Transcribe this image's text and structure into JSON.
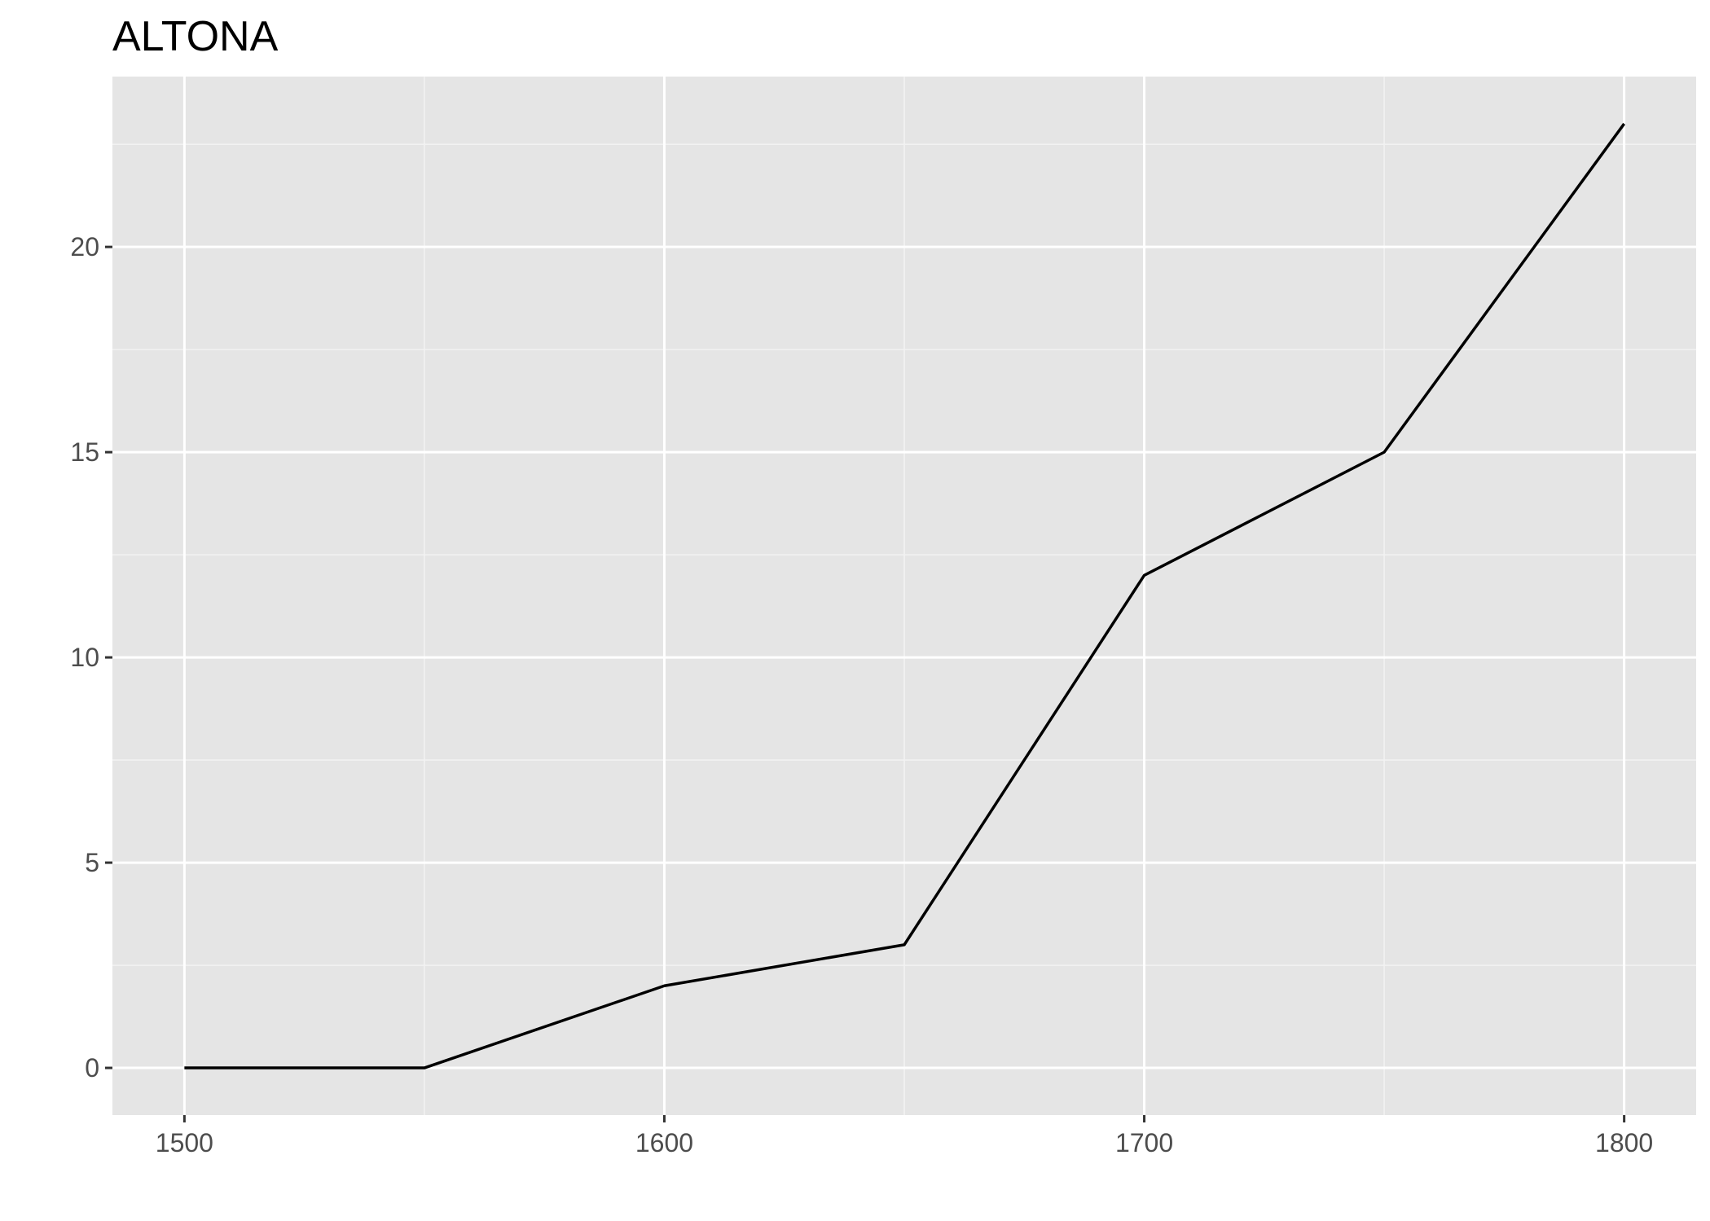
{
  "chart_data": {
    "type": "line",
    "title": "ALTONA",
    "xlabel": "",
    "ylabel": "",
    "x": [
      1500,
      1550,
      1600,
      1650,
      1700,
      1750,
      1800
    ],
    "series": [
      {
        "values": [
          0,
          0,
          2,
          3,
          12,
          15,
          23
        ]
      }
    ],
    "xlim": [
      1485,
      1815
    ],
    "ylim": [
      -1.15,
      24.15
    ],
    "x_ticks": [
      1500,
      1600,
      1700,
      1800
    ],
    "x_tick_labels": [
      "1500",
      "1600",
      "1700",
      "1800"
    ],
    "x_minor_ticks": [
      1550,
      1650,
      1750
    ],
    "y_ticks": [
      0,
      5,
      10,
      15,
      20
    ],
    "y_tick_labels": [
      "0",
      "5",
      "10",
      "15",
      "20"
    ],
    "y_minor_ticks": [
      2.5,
      7.5,
      12.5,
      17.5,
      22.5
    ],
    "grid": true,
    "legend": "none",
    "colors": {
      "panel_background": "#e5e5e5",
      "grid_major": "#ffffff",
      "grid_minor": "#f2f2f2",
      "line": "#000000",
      "tick_label": "#4d4d4d",
      "tick_mark": "#333333"
    }
  }
}
